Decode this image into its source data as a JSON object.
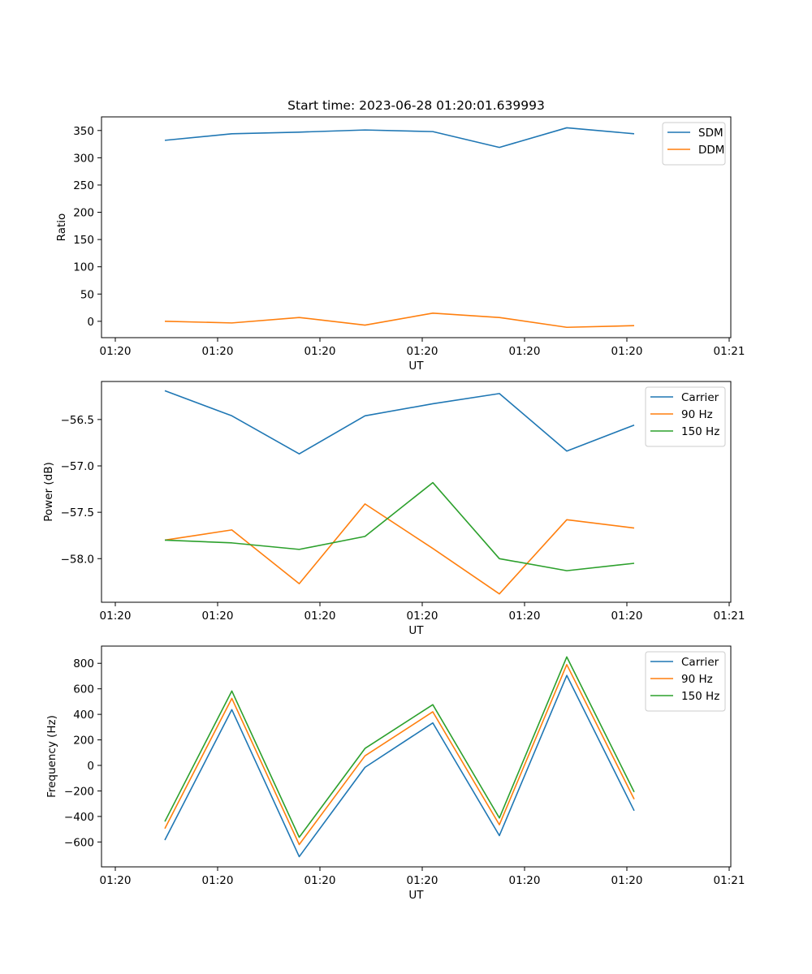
{
  "chart_data": [
    {
      "type": "line",
      "title": "Start time: 2023-06-28 01:20:01.639993",
      "xlabel": "UT",
      "ylabel": "Ratio",
      "x_tick_labels": [
        "01:20",
        "01:20",
        "01:20",
        "01:20",
        "01:20",
        "01:20",
        "01:21"
      ],
      "yticks": [
        0,
        50,
        100,
        150,
        200,
        250,
        300,
        350
      ],
      "ylim": [
        -30,
        375
      ],
      "grid": false,
      "legend_position": "upper right",
      "series": [
        {
          "name": "SDM",
          "color": "#1f77b4",
          "values": [
            332,
            344,
            347,
            351,
            348,
            319,
            355,
            344
          ]
        },
        {
          "name": "DDM",
          "color": "#ff7f0e",
          "values": [
            0,
            -3,
            7,
            -7,
            15,
            7,
            -11,
            -8
          ]
        }
      ]
    },
    {
      "type": "line",
      "title": "",
      "xlabel": "UT",
      "ylabel": "Power (dB)",
      "x_tick_labels": [
        "01:20",
        "01:20",
        "01:20",
        "01:20",
        "01:20",
        "01:20",
        "01:21"
      ],
      "yticks": [
        -56.5,
        -57.0,
        -57.5,
        -58.0
      ],
      "ytick_labels": [
        "−56.5",
        "−57.0",
        "−57.5",
        "−58.0"
      ],
      "ylim": [
        -58.47,
        -56.09
      ],
      "grid": false,
      "legend_position": "upper right",
      "series": [
        {
          "name": "Carrier",
          "color": "#1f77b4",
          "values": [
            -56.19,
            -56.46,
            -56.87,
            -56.46,
            -56.33,
            -56.22,
            -56.84,
            -56.56
          ]
        },
        {
          "name": "90 Hz",
          "color": "#ff7f0e",
          "values": [
            -57.8,
            -57.69,
            -58.27,
            -57.41,
            -57.89,
            -58.38,
            -57.58,
            -57.67
          ]
        },
        {
          "name": "150 Hz",
          "color": "#2ca02c",
          "values": [
            -57.8,
            -57.83,
            -57.9,
            -57.76,
            -57.18,
            -58.0,
            -58.13,
            -58.05
          ]
        }
      ]
    },
    {
      "type": "line",
      "title": "",
      "xlabel": "UT",
      "ylabel": "Frequency (Hz)",
      "x_tick_labels": [
        "01:20",
        "01:20",
        "01:20",
        "01:20",
        "01:20",
        "01:20",
        "01:21"
      ],
      "yticks": [
        800,
        600,
        400,
        200,
        0,
        -200,
        -400,
        -600
      ],
      "ytick_labels": [
        "800",
        "600",
        "400",
        "200",
        "0",
        "−200",
        "−400",
        "−600"
      ],
      "ylim": [
        -795,
        935
      ],
      "grid": false,
      "legend_position": "upper right",
      "series": [
        {
          "name": "Carrier",
          "color": "#1f77b4",
          "values": [
            -585,
            437,
            -715,
            -15,
            333,
            -550,
            705,
            -355
          ]
        },
        {
          "name": "90 Hz",
          "color": "#ff7f0e",
          "values": [
            -495,
            525,
            -620,
            75,
            420,
            -465,
            790,
            -265
          ]
        },
        {
          "name": "150 Hz",
          "color": "#2ca02c",
          "values": [
            -440,
            583,
            -563,
            133,
            476,
            -412,
            850,
            -208
          ]
        }
      ]
    }
  ]
}
